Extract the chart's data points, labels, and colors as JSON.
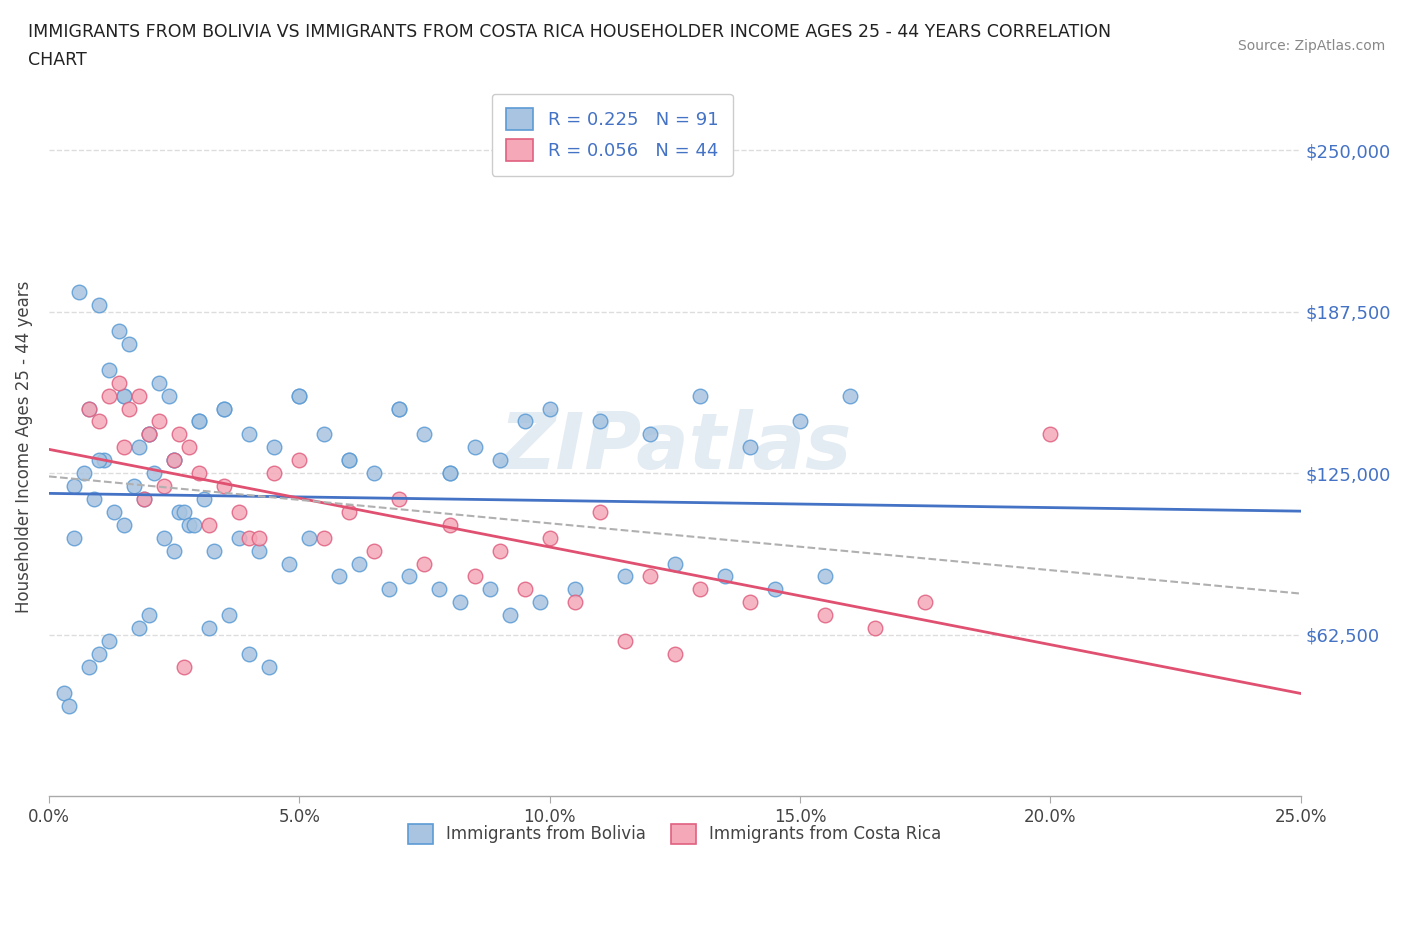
{
  "title_line1": "IMMIGRANTS FROM BOLIVIA VS IMMIGRANTS FROM COSTA RICA HOUSEHOLDER INCOME AGES 25 - 44 YEARS CORRELATION",
  "title_line2": "CHART",
  "source": "Source: ZipAtlas.com",
  "ylabel": "Householder Income Ages 25 - 44 years",
  "xlabel_ticks": [
    "0.0%",
    "5.0%",
    "10.0%",
    "15.0%",
    "20.0%",
    "25.0%"
  ],
  "xlabel_values": [
    0.0,
    0.05,
    0.1,
    0.15,
    0.2,
    0.25
  ],
  "ytick_labels": [
    "$62,500",
    "$125,000",
    "$187,500",
    "$250,000"
  ],
  "ytick_values": [
    62500,
    125000,
    187500,
    250000
  ],
  "xlim": [
    0.0,
    0.25
  ],
  "ylim": [
    0,
    270000
  ],
  "bolivia_color": "#a8c4e0",
  "costa_rica_color": "#f4a8b8",
  "bolivia_edge": "#5b9bd5",
  "costa_rica_edge": "#e06080",
  "trendline_bolivia_color": "#4472c4",
  "trendline_cr_color": "#e05070",
  "trendline_gray_color": "#b0b0b0",
  "R_bolivia": 0.225,
  "N_bolivia": 91,
  "R_cr": 0.056,
  "N_cr": 44,
  "legend_label_bolivia": "Immigrants from Bolivia",
  "legend_label_cr": "Immigrants from Costa Rica",
  "watermark": "ZIPatlas",
  "bolivia_x": [
    0.003,
    0.004,
    0.005,
    0.005,
    0.006,
    0.007,
    0.008,
    0.008,
    0.009,
    0.01,
    0.01,
    0.011,
    0.012,
    0.012,
    0.013,
    0.014,
    0.015,
    0.015,
    0.016,
    0.017,
    0.018,
    0.018,
    0.019,
    0.02,
    0.02,
    0.021,
    0.022,
    0.023,
    0.024,
    0.025,
    0.025,
    0.026,
    0.027,
    0.028,
    0.029,
    0.03,
    0.031,
    0.032,
    0.033,
    0.035,
    0.036,
    0.038,
    0.04,
    0.042,
    0.044,
    0.045,
    0.048,
    0.05,
    0.052,
    0.055,
    0.058,
    0.06,
    0.062,
    0.065,
    0.068,
    0.07,
    0.072,
    0.075,
    0.078,
    0.08,
    0.082,
    0.085,
    0.088,
    0.09,
    0.092,
    0.095,
    0.098,
    0.1,
    0.105,
    0.11,
    0.115,
    0.12,
    0.125,
    0.13,
    0.135,
    0.14,
    0.145,
    0.15,
    0.155,
    0.16,
    0.01,
    0.015,
    0.02,
    0.025,
    0.03,
    0.035,
    0.04,
    0.05,
    0.06,
    0.07,
    0.08
  ],
  "bolivia_y": [
    40000,
    35000,
    120000,
    100000,
    195000,
    125000,
    150000,
    50000,
    115000,
    190000,
    55000,
    130000,
    165000,
    60000,
    110000,
    180000,
    155000,
    105000,
    175000,
    120000,
    135000,
    65000,
    115000,
    140000,
    70000,
    125000,
    160000,
    100000,
    155000,
    130000,
    95000,
    110000,
    110000,
    105000,
    105000,
    145000,
    115000,
    65000,
    95000,
    150000,
    70000,
    100000,
    55000,
    95000,
    50000,
    135000,
    90000,
    155000,
    100000,
    140000,
    85000,
    130000,
    90000,
    125000,
    80000,
    150000,
    85000,
    140000,
    80000,
    125000,
    75000,
    135000,
    80000,
    130000,
    70000,
    145000,
    75000,
    150000,
    80000,
    145000,
    85000,
    140000,
    90000,
    155000,
    85000,
    135000,
    80000,
    145000,
    85000,
    155000,
    130000,
    155000,
    140000,
    130000,
    145000,
    150000,
    140000,
    155000,
    130000,
    150000,
    125000
  ],
  "cr_x": [
    0.008,
    0.01,
    0.012,
    0.014,
    0.015,
    0.016,
    0.018,
    0.019,
    0.02,
    0.022,
    0.023,
    0.025,
    0.026,
    0.027,
    0.028,
    0.03,
    0.032,
    0.035,
    0.038,
    0.04,
    0.042,
    0.045,
    0.05,
    0.055,
    0.06,
    0.065,
    0.07,
    0.075,
    0.08,
    0.085,
    0.09,
    0.095,
    0.1,
    0.105,
    0.11,
    0.115,
    0.12,
    0.125,
    0.13,
    0.14,
    0.155,
    0.165,
    0.175,
    0.2
  ],
  "cr_y": [
    150000,
    145000,
    155000,
    160000,
    135000,
    150000,
    155000,
    115000,
    140000,
    145000,
    120000,
    130000,
    140000,
    50000,
    135000,
    125000,
    105000,
    120000,
    110000,
    100000,
    100000,
    125000,
    130000,
    100000,
    110000,
    95000,
    115000,
    90000,
    105000,
    85000,
    95000,
    80000,
    100000,
    75000,
    110000,
    60000,
    85000,
    55000,
    80000,
    75000,
    70000,
    65000,
    75000,
    140000
  ]
}
